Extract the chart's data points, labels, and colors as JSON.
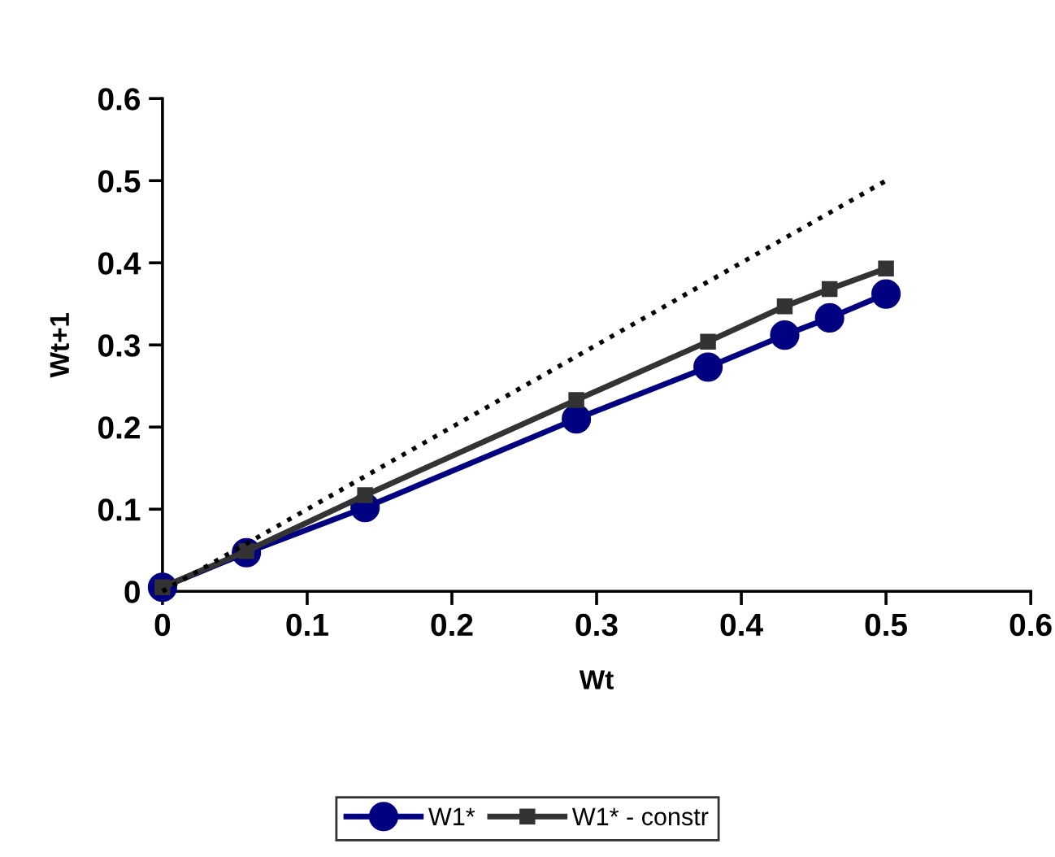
{
  "chart_data": {
    "type": "line",
    "xlabel": "Wt",
    "ylabel": "Wt+1",
    "xlim": [
      0,
      0.6
    ],
    "ylim": [
      0,
      0.6
    ],
    "xticks": [
      0,
      0.1,
      0.2,
      0.3,
      0.4,
      0.5,
      0.6
    ],
    "yticks": [
      0,
      0.1,
      0.2,
      0.3,
      0.4,
      0.5,
      0.6
    ],
    "grid": false,
    "legend": "bottom",
    "series": [
      {
        "name": "W1*",
        "color": "#000080",
        "marker": "circle",
        "line_style": "solid",
        "x": [
          0,
          0.058,
          0.14,
          0.286,
          0.377,
          0.43,
          0.461,
          0.5
        ],
        "values": [
          0.005,
          0.047,
          0.102,
          0.21,
          0.273,
          0.312,
          0.333,
          0.362
        ]
      },
      {
        "name": "W1* - constr",
        "color": "#333333",
        "marker": "square",
        "line_style": "solid",
        "x": [
          0,
          0.058,
          0.14,
          0.286,
          0.377,
          0.43,
          0.461,
          0.5
        ],
        "values": [
          0.005,
          0.049,
          0.117,
          0.233,
          0.304,
          0.347,
          0.368,
          0.393
        ]
      },
      {
        "color": "#000000",
        "marker": "none",
        "line_style": "dotted",
        "x": [
          0,
          0.5
        ],
        "values": [
          0,
          0.5
        ]
      }
    ]
  }
}
